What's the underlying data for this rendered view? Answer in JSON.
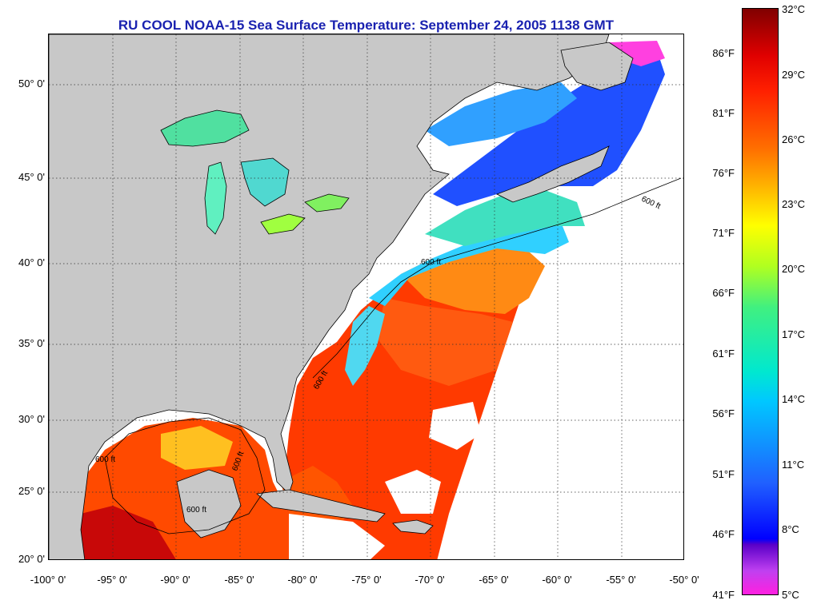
{
  "title": "RU COOL  NOAA-15  Sea Surface Temperature:  September 24, 2005 1138 GMT",
  "latitude_labels": [
    "50° 0'",
    "45° 0'",
    "40° 0'",
    "35° 0'",
    "30° 0'",
    "25° 0'",
    "20° 0'"
  ],
  "longitude_labels": [
    "-100° 0'",
    "-95° 0'",
    "-90° 0'",
    "-85° 0'",
    "-80° 0'",
    "-75° 0'",
    "-70° 0'",
    "-65° 0'",
    "-60° 0'",
    "-55° 0'",
    "-50° 0'"
  ],
  "contour_labels": [
    "600 ft",
    "600 ft",
    "600 ft",
    "600 ft",
    "600 ft",
    "600 ft"
  ],
  "colorbar": {
    "fahrenheit_labels": [
      "86°F",
      "81°F",
      "76°F",
      "71°F",
      "66°F",
      "61°F",
      "56°F",
      "51°F",
      "46°F",
      "41°F"
    ],
    "celsius_labels": [
      "32°C",
      "29°C",
      "26°C",
      "23°C",
      "20°C",
      "17°C",
      "14°C",
      "11°C",
      "8°C",
      "5°C"
    ]
  },
  "colors": {
    "land": "#c8c8c8",
    "no_data": "#ffffff",
    "title": "#1a22b0",
    "warm": "#ff2a00",
    "hot": "#c00000",
    "orange": "#ff8a10",
    "cool": "#30c8ff",
    "cold": "#2040ff",
    "lakes": "#60e080"
  }
}
